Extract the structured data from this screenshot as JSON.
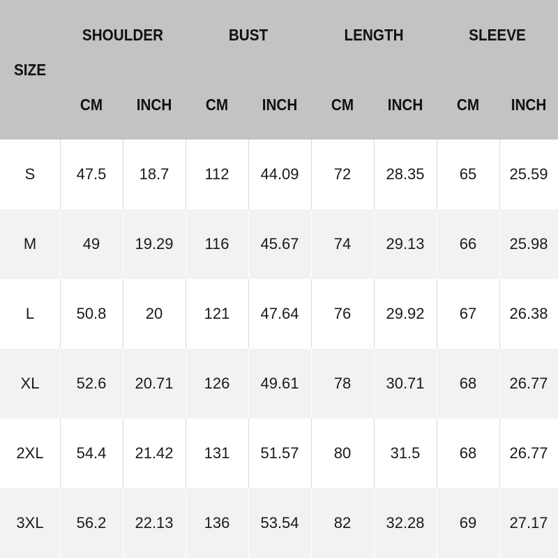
{
  "table": {
    "size_label": "SIZE",
    "groups": [
      "SHOULDER",
      "BUST",
      "LENGTH",
      "SLEEVE"
    ],
    "units": [
      "CM",
      "INCH",
      "CM",
      "INCH",
      "CM",
      "INCH",
      "CM",
      "INCH"
    ],
    "rows": [
      [
        "S",
        "47.5",
        "18.7",
        "112",
        "44.09",
        "72",
        "28.35",
        "65",
        "25.59"
      ],
      [
        "M",
        "49",
        "19.29",
        "116",
        "45.67",
        "74",
        "29.13",
        "66",
        "25.98"
      ],
      [
        "L",
        "50.8",
        "20",
        "121",
        "47.64",
        "76",
        "29.92",
        "67",
        "26.38"
      ],
      [
        "XL",
        "52.6",
        "20.71",
        "126",
        "49.61",
        "78",
        "30.71",
        "68",
        "26.77"
      ],
      [
        "2XL",
        "54.4",
        "21.42",
        "131",
        "51.57",
        "80",
        "31.5",
        "68",
        "26.77"
      ],
      [
        "3XL",
        "56.2",
        "22.13",
        "136",
        "53.54",
        "82",
        "32.28",
        "69",
        "27.17"
      ]
    ]
  }
}
